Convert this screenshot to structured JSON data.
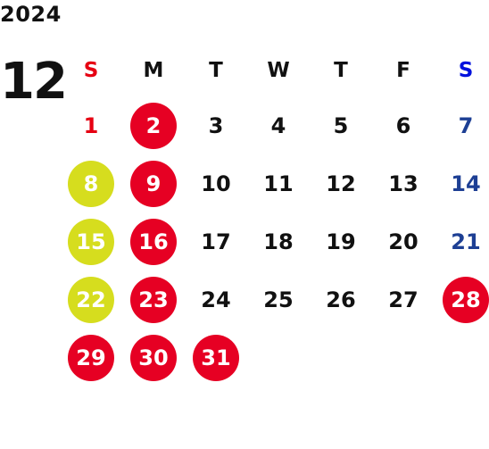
{
  "year": "2024",
  "month": "12",
  "weekdays": [
    "S",
    "M",
    "T",
    "W",
    "T",
    "F",
    "S"
  ],
  "colors": {
    "default_text": "#111111",
    "sunday_text": "#e60012",
    "saturday_text": "#1d3f94",
    "saturday_header": "#0011dd",
    "red_circle": "#e60023",
    "yellow_circle": "#d6dd1e",
    "circle_text": "#ffffff"
  },
  "weeks": [
    [
      {
        "day": "1",
        "style": "sunday"
      },
      {
        "day": "2",
        "style": "red"
      },
      {
        "day": "3",
        "style": "normal"
      },
      {
        "day": "4",
        "style": "normal"
      },
      {
        "day": "5",
        "style": "normal"
      },
      {
        "day": "6",
        "style": "normal"
      },
      {
        "day": "7",
        "style": "saturday"
      }
    ],
    [
      {
        "day": "8",
        "style": "yellow"
      },
      {
        "day": "9",
        "style": "red"
      },
      {
        "day": "10",
        "style": "normal"
      },
      {
        "day": "11",
        "style": "normal"
      },
      {
        "day": "12",
        "style": "normal"
      },
      {
        "day": "13",
        "style": "normal"
      },
      {
        "day": "14",
        "style": "saturday"
      }
    ],
    [
      {
        "day": "15",
        "style": "yellow"
      },
      {
        "day": "16",
        "style": "red"
      },
      {
        "day": "17",
        "style": "normal"
      },
      {
        "day": "18",
        "style": "normal"
      },
      {
        "day": "19",
        "style": "normal"
      },
      {
        "day": "20",
        "style": "normal"
      },
      {
        "day": "21",
        "style": "saturday"
      }
    ],
    [
      {
        "day": "22",
        "style": "yellow"
      },
      {
        "day": "23",
        "style": "red"
      },
      {
        "day": "24",
        "style": "normal"
      },
      {
        "day": "25",
        "style": "normal"
      },
      {
        "day": "26",
        "style": "normal"
      },
      {
        "day": "27",
        "style": "normal"
      },
      {
        "day": "28",
        "style": "red"
      }
    ],
    [
      {
        "day": "29",
        "style": "red"
      },
      {
        "day": "30",
        "style": "red"
      },
      {
        "day": "31",
        "style": "red"
      },
      {
        "day": "",
        "style": "empty"
      },
      {
        "day": "",
        "style": "empty"
      },
      {
        "day": "",
        "style": "empty"
      },
      {
        "day": "",
        "style": "empty"
      }
    ]
  ]
}
